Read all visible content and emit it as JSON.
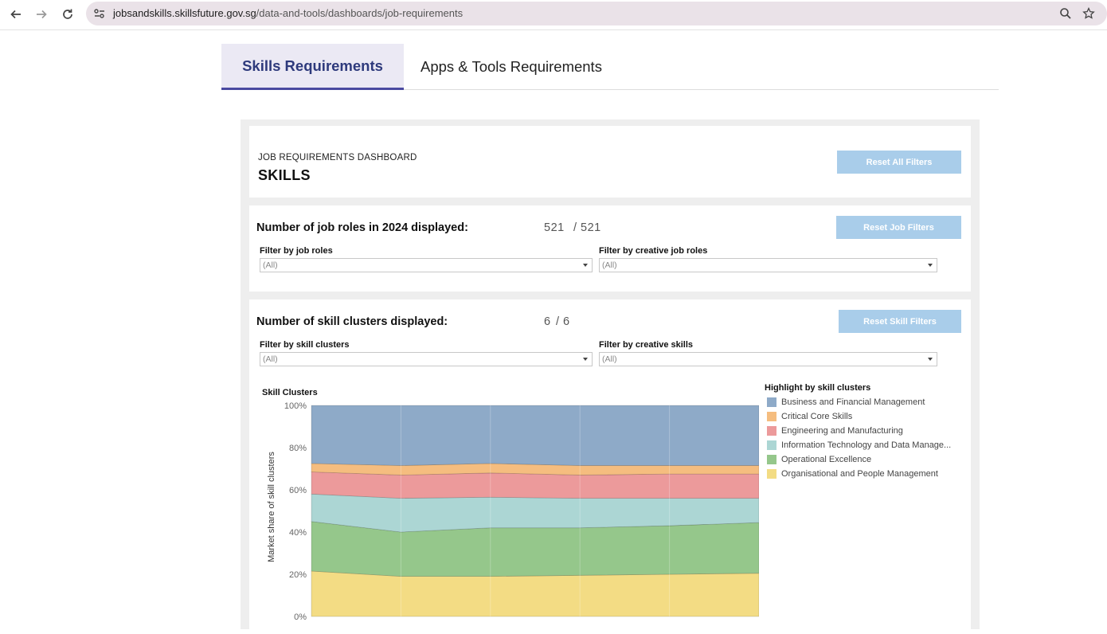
{
  "browser": {
    "url_domain": "jobsandskills.skillsfuture.gov.sg",
    "url_path": "/data-and-tools/dashboards/job-requirements"
  },
  "tabs": [
    {
      "label": "Skills Requirements",
      "active": true
    },
    {
      "label": "Apps & Tools Requirements",
      "active": false
    }
  ],
  "header": {
    "eyebrow": "JOB REQUIREMENTS DASHBOARD",
    "title": "SKILLS",
    "reset_all_label": "Reset All Filters"
  },
  "job_section": {
    "label": "Number of job roles in 2024 displayed:",
    "count": "521",
    "total": "/ 521",
    "reset_label": "Reset Job Filters",
    "filters": [
      {
        "label": "Filter by job roles",
        "value": "(All)"
      },
      {
        "label": "Filter by creative job roles",
        "value": "(All)"
      }
    ]
  },
  "skill_section": {
    "label": "Number of skill clusters displayed:",
    "count": "6",
    "total": "/ 6",
    "reset_label": "Reset Skill Filters",
    "filters": [
      {
        "label": "Filter by skill clusters",
        "value": "(All)"
      },
      {
        "label": "Filter by creative skills",
        "value": "(All)"
      }
    ]
  },
  "legend": {
    "title": "Highlight by skill clusters",
    "items": [
      {
        "label": "Business and Financial Management",
        "color": "#8eaac8"
      },
      {
        "label": "Critical Core Skills",
        "color": "#f5bd7f"
      },
      {
        "label": "Engineering and Manufacturing",
        "color": "#ec9a9b"
      },
      {
        "label": "Information Technology and Data Manage...",
        "color": "#acd6d4"
      },
      {
        "label": "Operational Excellence",
        "color": "#95c78b"
      },
      {
        "label": "Organisational and People Management",
        "color": "#f3dc84"
      }
    ]
  },
  "chart_data": {
    "type": "area",
    "title": "Skill Clusters",
    "ylabel": "Market share of skill clusters",
    "xlabel": "",
    "ylim": [
      0,
      100
    ],
    "yticks": [
      "0%",
      "20%",
      "40%",
      "60%",
      "80%",
      "100%"
    ],
    "x": [
      1,
      2,
      3,
      4,
      5,
      6
    ],
    "stacked": true,
    "series": [
      {
        "name": "Organisational and People Management",
        "color": "#f3dc84",
        "values": [
          21.5,
          19.0,
          19.0,
          19.5,
          20.0,
          20.5
        ]
      },
      {
        "name": "Operational Excellence",
        "color": "#95c78b",
        "values": [
          23.5,
          21.0,
          23.0,
          22.5,
          23.0,
          24.0
        ]
      },
      {
        "name": "Information Technology and Data Manage...",
        "color": "#acd6d4",
        "values": [
          13.0,
          16.0,
          14.5,
          14.0,
          13.0,
          11.5
        ]
      },
      {
        "name": "Engineering and Manufacturing",
        "color": "#ec9a9b",
        "values": [
          10.5,
          11.0,
          11.5,
          11.0,
          11.5,
          11.5
        ]
      },
      {
        "name": "Critical Core Skills",
        "color": "#f5bd7f",
        "values": [
          4.0,
          4.5,
          4.5,
          4.5,
          4.0,
          4.0
        ]
      },
      {
        "name": "Business and Financial Management",
        "color": "#8eaac8",
        "values": [
          27.5,
          28.5,
          27.5,
          28.5,
          28.5,
          28.5
        ]
      }
    ]
  }
}
